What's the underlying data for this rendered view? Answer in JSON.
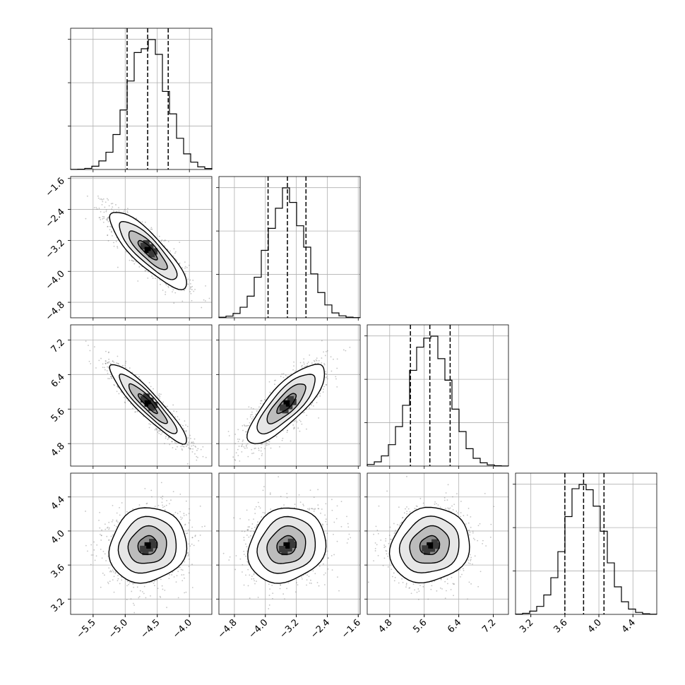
{
  "chart_data": {
    "type": "corner",
    "grid": true,
    "parameters": [
      {
        "ticks": [
          -5.5,
          -5.0,
          -4.5,
          -4.0
        ],
        "tick_labels": [
          "−5.5",
          "−5.0",
          "−4.5",
          "−4.0"
        ],
        "range": [
          -5.85,
          -3.65
        ],
        "mean": -4.65,
        "sd": 0.3,
        "quantiles": [
          -4.97,
          -4.65,
          -4.33
        ]
      },
      {
        "ticks": [
          -4.8,
          -4.0,
          -3.2,
          -2.4,
          -1.6
        ],
        "tick_labels": [
          "−4.8",
          "−4.0",
          "−3.2",
          "−2.4",
          "−1.6"
        ],
        "range": [
          -5.2,
          -1.55
        ],
        "mean": -3.45,
        "sd": 0.5,
        "quantiles": [
          -3.93,
          -3.43,
          -2.95
        ]
      },
      {
        "ticks": [
          4.8,
          5.6,
          6.4,
          7.2
        ],
        "tick_labels": [
          "4.8",
          "5.6",
          "6.4",
          "7.2"
        ],
        "range": [
          4.28,
          7.55
        ],
        "mean": 5.73,
        "sd": 0.46,
        "quantiles": [
          5.28,
          5.73,
          6.2
        ]
      },
      {
        "ticks": [
          3.2,
          3.6,
          4.0,
          4.4
        ],
        "tick_labels": [
          "3.2",
          "3.6",
          "4.0",
          "4.4"
        ],
        "range": [
          3.02,
          4.68
        ],
        "mean": 3.83,
        "sd": 0.22,
        "quantiles": [
          3.6,
          3.82,
          4.06
        ]
      }
    ],
    "correlations": [
      {
        "pair": [
          0,
          1
        ],
        "rho": -0.85
      },
      {
        "pair": [
          0,
          2
        ],
        "rho": -0.92
      },
      {
        "pair": [
          1,
          2
        ],
        "rho": 0.8
      },
      {
        "pair": [
          0,
          3
        ],
        "rho": 0.1
      },
      {
        "pair": [
          1,
          3
        ],
        "rho": 0.15
      },
      {
        "pair": [
          2,
          3
        ],
        "rho": 0.12
      }
    ],
    "contour_levels_sigma": [
      0.5,
      1.0,
      1.5,
      2.0
    ]
  }
}
